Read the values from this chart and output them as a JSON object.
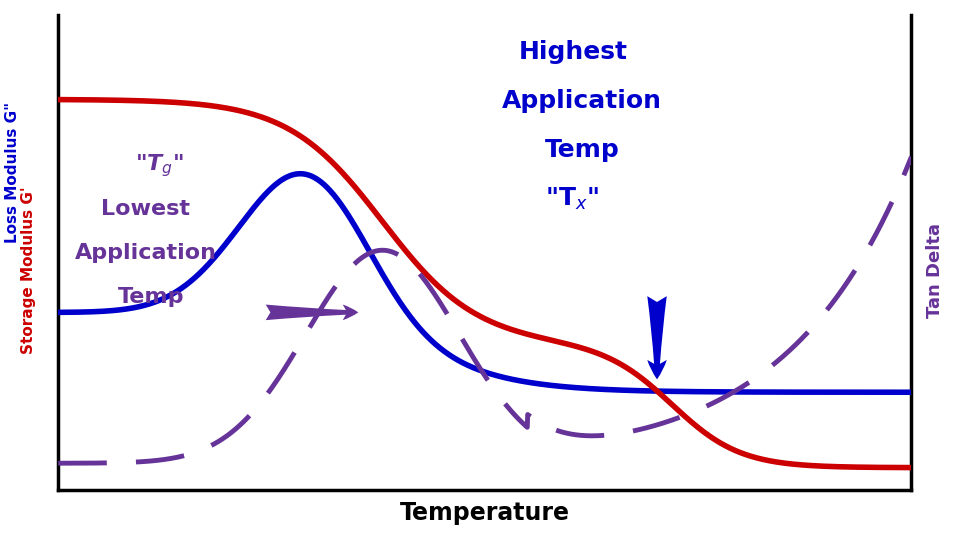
{
  "xlabel": "Temperature",
  "ylabel_left1": "Loss Modulus G\"",
  "ylabel_left2": "Storage Modulus G'",
  "ylabel_right": "Tan Delta",
  "background_color": "#ffffff",
  "line_blue_color": "#0000cc",
  "line_red_color": "#cc0000",
  "line_tan_color": "#663399",
  "annotation_blue_color": "#0000cc",
  "annotation_purple_color": "#663399",
  "xlim": [
    0,
    100
  ],
  "ylim": [
    -0.02,
    1.05
  ]
}
